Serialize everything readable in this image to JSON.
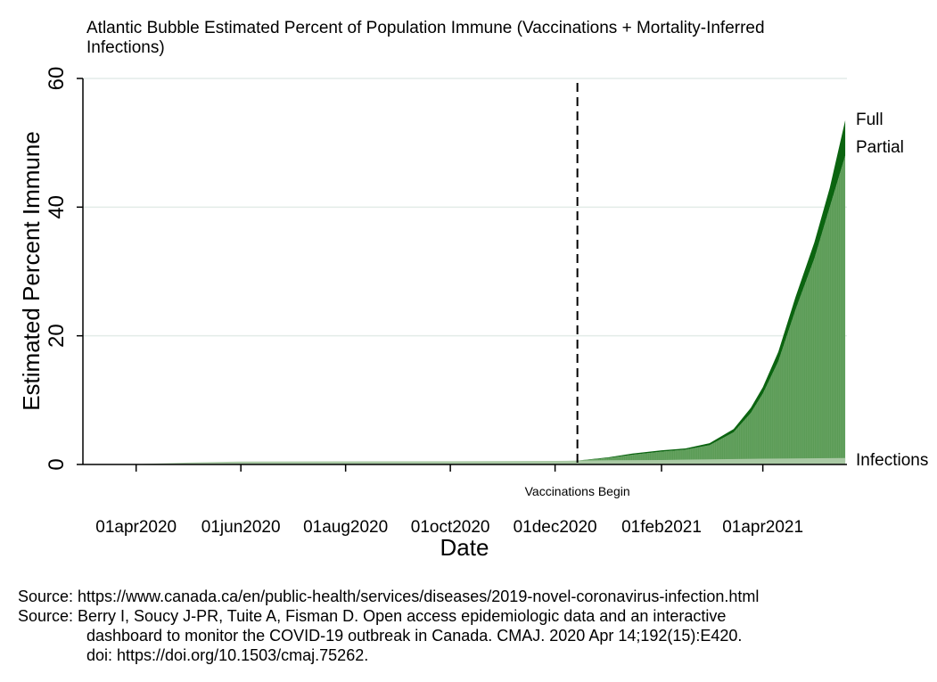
{
  "chart_data": {
    "type": "area",
    "title_lines": [
      "Atlantic Bubble Estimated Percent of Population Immune (Vaccinations + Mortality-Inferred",
      "Infections)"
    ],
    "xlabel": "Date",
    "ylabel": "Estimated Percent Immune",
    "ylim": [
      0,
      60
    ],
    "yticks": [
      0,
      20,
      40,
      60
    ],
    "xlim": [
      "2020-03-01",
      "2021-05-20"
    ],
    "xticks": [
      {
        "date": "2020-04-01",
        "label": "01apr2020"
      },
      {
        "date": "2020-06-01",
        "label": "01jun2020"
      },
      {
        "date": "2020-08-01",
        "label": "01aug2020"
      },
      {
        "date": "2020-10-01",
        "label": "01oct2020"
      },
      {
        "date": "2020-12-01",
        "label": "01dec2020"
      },
      {
        "date": "2021-02-01",
        "label": "01feb2021"
      },
      {
        "date": "2021-04-01",
        "label": "01apr2021"
      }
    ],
    "grid": true,
    "annotation": {
      "date": "2020-12-14",
      "label": "Vaccinations Begin",
      "style": "dashed"
    },
    "colors": {
      "infections": "#a9c9a4",
      "partial": "#5a9b55",
      "full": "#0b6410",
      "grid": "#e3ece8"
    },
    "series": [
      {
        "name": "Infections",
        "points": [
          [
            "2020-03-01",
            0
          ],
          [
            "2020-04-01",
            0.05
          ],
          [
            "2020-05-01",
            0.3
          ],
          [
            "2020-06-01",
            0.45
          ],
          [
            "2020-08-01",
            0.48
          ],
          [
            "2020-10-01",
            0.5
          ],
          [
            "2020-12-01",
            0.55
          ],
          [
            "2020-12-14",
            0.6
          ],
          [
            "2021-01-01",
            0.65
          ],
          [
            "2021-02-01",
            0.7
          ],
          [
            "2021-03-01",
            0.8
          ],
          [
            "2021-04-01",
            0.9
          ],
          [
            "2021-05-19",
            1.0
          ]
        ]
      },
      {
        "name": "Partial",
        "points": [
          [
            "2020-12-14",
            0.6
          ],
          [
            "2021-01-01",
            1.0
          ],
          [
            "2021-01-15",
            1.5
          ],
          [
            "2021-02-01",
            2.0
          ],
          [
            "2021-02-15",
            2.3
          ],
          [
            "2021-03-01",
            3.0
          ],
          [
            "2021-03-15",
            5.0
          ],
          [
            "2021-03-25",
            8.0
          ],
          [
            "2021-04-01",
            11.0
          ],
          [
            "2021-04-10",
            16.0
          ],
          [
            "2021-04-20",
            24.0
          ],
          [
            "2021-05-01",
            32.0
          ],
          [
            "2021-05-10",
            40.0
          ],
          [
            "2021-05-19",
            48.0
          ]
        ]
      },
      {
        "name": "Full",
        "points": [
          [
            "2020-12-14",
            0.6
          ],
          [
            "2021-01-01",
            1.1
          ],
          [
            "2021-01-15",
            1.7
          ],
          [
            "2021-02-01",
            2.2
          ],
          [
            "2021-02-15",
            2.5
          ],
          [
            "2021-03-01",
            3.3
          ],
          [
            "2021-03-15",
            5.5
          ],
          [
            "2021-03-25",
            8.8
          ],
          [
            "2021-04-01",
            12.0
          ],
          [
            "2021-04-10",
            17.5
          ],
          [
            "2021-04-20",
            26.0
          ],
          [
            "2021-05-01",
            34.5
          ],
          [
            "2021-05-10",
            43.0
          ],
          [
            "2021-05-19",
            53.5
          ]
        ]
      }
    ]
  },
  "sources": {
    "line1": "Source: https://www.canada.ca/en/public-health/services/diseases/2019-novel-coronavirus-infection.html",
    "line2": "Source: Berry I, Soucy J-PR, Tuite A, Fisman D. Open access epidemiologic data and an interactive",
    "line3": "dashboard to monitor the COVID-19 outbreak in Canada. CMAJ. 2020 Apr 14;192(15):E420.",
    "line4": "doi: https://doi.org/10.1503/cmaj.75262."
  }
}
